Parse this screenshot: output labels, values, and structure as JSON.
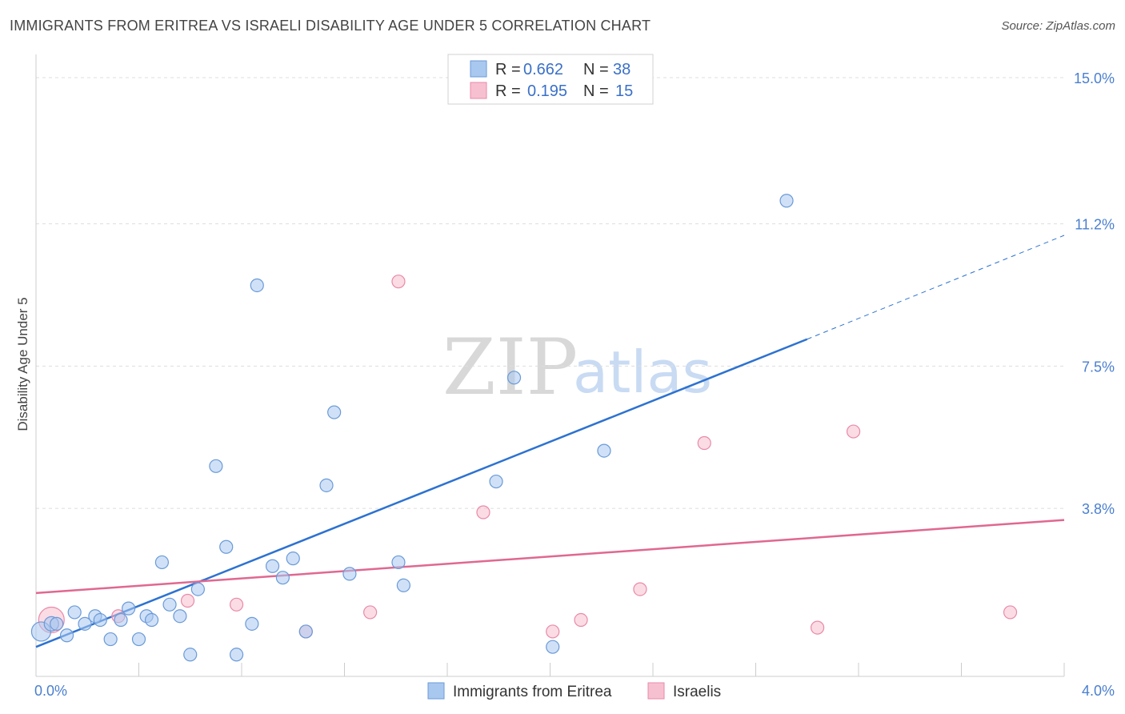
{
  "title": "IMMIGRANTS FROM ERITREA VS ISRAELI DISABILITY AGE UNDER 5 CORRELATION CHART",
  "source": "Source: ZipAtlas.com",
  "watermark": {
    "zip": "ZIP",
    "atlas": "atlas"
  },
  "colors": {
    "blue_fill": "#a9c8f0",
    "blue_stroke": "#6a9ad8",
    "blue_line": "#2d72d0",
    "pink_fill": "#f7c0d0",
    "pink_stroke": "#e98aa8",
    "pink_line": "#e06890",
    "grid": "#dddddd",
    "tick_text": "#4a7fd0"
  },
  "legend": {
    "rows": [
      {
        "r_label": "R =",
        "r_value": "0.662",
        "n_label": "N =",
        "n_value": "38"
      },
      {
        "r_label": "R =",
        "r_value": "0.195",
        "n_label": "N =",
        "n_value": "15"
      }
    ]
  },
  "bottom_legend": [
    "Immigrants from Eritrea",
    "Israelis"
  ],
  "chart_data": {
    "type": "scatter",
    "title": "IMMIGRANTS FROM ERITREA VS ISRAELI DISABILITY AGE UNDER 5 CORRELATION CHART",
    "xlabel": "",
    "ylabel": "Disability Age Under 5",
    "xlim": [
      0,
      4.0
    ],
    "ylim": [
      0,
      15.0
    ],
    "x_tick_labels": [
      "0.0%",
      "4.0%"
    ],
    "y_ticks": [
      3.8,
      7.5,
      11.2,
      15.0
    ],
    "y_tick_labels": [
      "3.8%",
      "7.5%",
      "11.2%",
      "15.0%"
    ],
    "grid": true,
    "legend_position": "top-center",
    "series": [
      {
        "name": "Immigrants from Eritrea",
        "points": [
          [
            0.02,
            0.6,
            12
          ],
          [
            0.06,
            0.8,
            9
          ],
          [
            0.08,
            0.8,
            8
          ],
          [
            0.12,
            0.5,
            8
          ],
          [
            0.15,
            1.1,
            8
          ],
          [
            0.19,
            0.8,
            8
          ],
          [
            0.23,
            1.0,
            8
          ],
          [
            0.25,
            0.9,
            8
          ],
          [
            0.29,
            0.4,
            8
          ],
          [
            0.33,
            0.9,
            8
          ],
          [
            0.36,
            1.2,
            8
          ],
          [
            0.4,
            0.4,
            8
          ],
          [
            0.43,
            1.0,
            8
          ],
          [
            0.45,
            0.9,
            8
          ],
          [
            0.49,
            2.4,
            8
          ],
          [
            0.52,
            1.3,
            8
          ],
          [
            0.56,
            1.0,
            8
          ],
          [
            0.6,
            0.0,
            8
          ],
          [
            0.63,
            1.7,
            8
          ],
          [
            0.7,
            4.9,
            8
          ],
          [
            0.74,
            2.8,
            8
          ],
          [
            0.78,
            0.0,
            8
          ],
          [
            0.84,
            0.8,
            8
          ],
          [
            0.86,
            9.6,
            8
          ],
          [
            0.92,
            2.3,
            8
          ],
          [
            0.96,
            2.0,
            8
          ],
          [
            1.0,
            2.5,
            8
          ],
          [
            1.05,
            0.6,
            8
          ],
          [
            1.13,
            4.4,
            8
          ],
          [
            1.16,
            6.3,
            8
          ],
          [
            1.22,
            2.1,
            8
          ],
          [
            1.41,
            2.4,
            8
          ],
          [
            1.43,
            1.8,
            8
          ],
          [
            1.79,
            4.5,
            8
          ],
          [
            1.86,
            7.2,
            8
          ],
          [
            2.01,
            0.2,
            8
          ],
          [
            2.21,
            5.3,
            8
          ],
          [
            2.92,
            11.8,
            8
          ]
        ],
        "trendline": {
          "x": [
            0.0,
            3.0
          ],
          "y": [
            0.2,
            8.2
          ],
          "dashed_extension_to": [
            4.0,
            10.9
          ]
        }
      },
      {
        "name": "Israelis",
        "points": [
          [
            0.06,
            0.9,
            16
          ],
          [
            0.32,
            1.0,
            8
          ],
          [
            0.59,
            1.4,
            8
          ],
          [
            0.78,
            1.3,
            8
          ],
          [
            1.05,
            0.6,
            8
          ],
          [
            1.3,
            1.1,
            8
          ],
          [
            1.41,
            9.7,
            8
          ],
          [
            1.74,
            3.7,
            8
          ],
          [
            2.01,
            0.6,
            8
          ],
          [
            2.12,
            0.9,
            8
          ],
          [
            2.35,
            1.7,
            8
          ],
          [
            2.6,
            5.5,
            8
          ],
          [
            3.04,
            0.7,
            8
          ],
          [
            3.18,
            5.8,
            8
          ],
          [
            3.79,
            1.1,
            8
          ]
        ],
        "trendline": {
          "x": [
            0.0,
            4.0
          ],
          "y": [
            1.6,
            3.5
          ]
        }
      }
    ]
  }
}
